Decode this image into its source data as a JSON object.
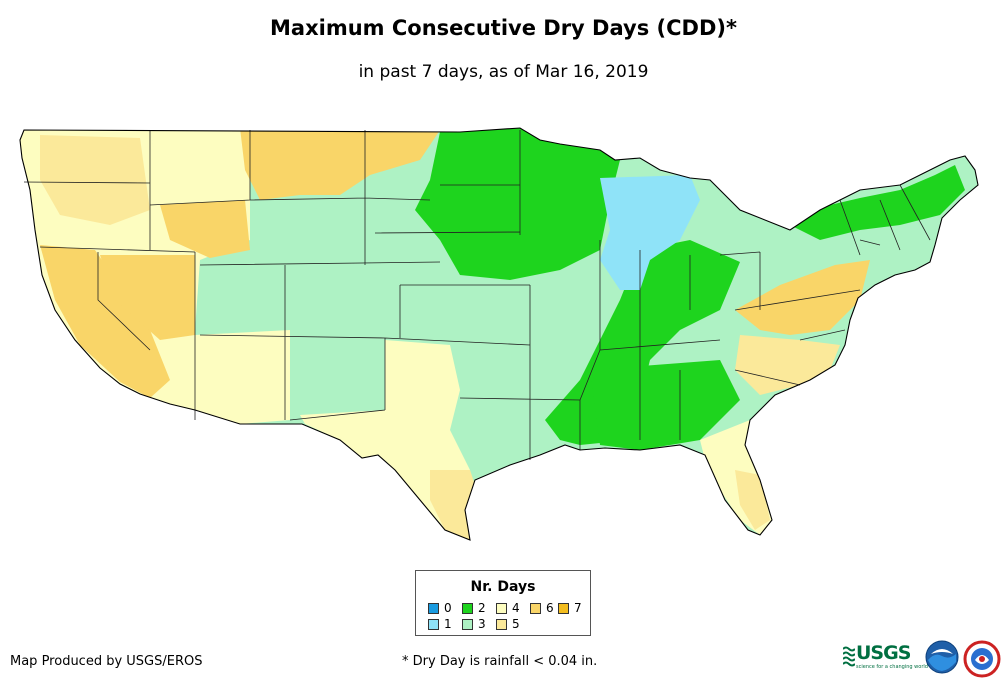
{
  "header": {
    "title": "Maximum Consecutive Dry Days (CDD)*",
    "subtitle": "in past 7 days, as of Mar 16, 2019"
  },
  "legend": {
    "title": "Nr. Days",
    "items": [
      {
        "label": "0",
        "color": "#1a9be0"
      },
      {
        "label": "1",
        "color": "#8fe3f8"
      },
      {
        "label": "2",
        "color": "#1ed41e"
      },
      {
        "label": "3",
        "color": "#aef2c4"
      },
      {
        "label": "4",
        "color": "#fdfdc0"
      },
      {
        "label": "5",
        "color": "#fbe99a"
      },
      {
        "label": "6",
        "color": "#f9d568"
      },
      {
        "label": "7",
        "color": "#f3bd1f"
      }
    ]
  },
  "footer": {
    "credit": "Map Produced by USGS/EROS",
    "footnote": "* Dry Day is rainfall < 0.04 in.",
    "logo_text": "USGS",
    "logo_tagline": "science for a changing world"
  },
  "colors": {
    "state_border": "#222222",
    "nation_border": "#000000"
  }
}
